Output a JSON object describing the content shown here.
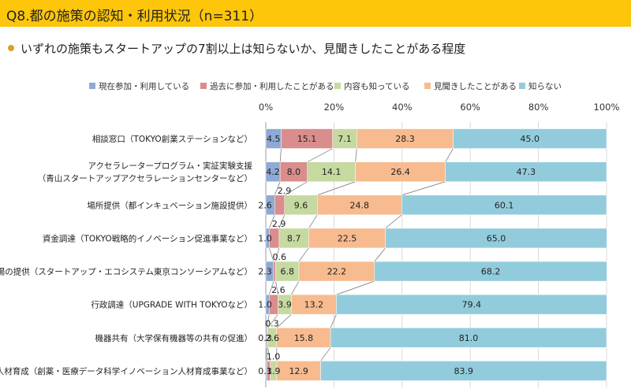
{
  "header": {
    "title": "Q8.都の施策の認知・利用状況（n=311）",
    "subtitle": "いずれの施策もスタートアップの7割以上は知らないか、見聞きしたことがある程度"
  },
  "colors": {
    "title_bar": "#fdc60a",
    "bullet": "#e0a020",
    "series": [
      "#8fa9d4",
      "#d98d8d",
      "#c5d9a0",
      "#f7bb8f",
      "#92ccdc"
    ],
    "grid": "#d9d9d9",
    "connector": "#808080"
  },
  "chart_data": {
    "type": "bar",
    "orientation": "horizontal",
    "stacked": true,
    "xlim": [
      0,
      100
    ],
    "x_ticks": [
      "0%",
      "20%",
      "40%",
      "60%",
      "80%",
      "100%"
    ],
    "legend_position": "top",
    "categories": [
      "相談窓口（TOKYO創業ステーションなど）",
      "アクセラレータープログラム・実証実験支援\n（青山スタートアップアクセラレーションセンターなど）",
      "場所提供（都インキュベーション施設提供）",
      "資金調達（TOKYO戦略的イノベーション促進事業など）",
      "場の提供（スタートアップ・エコシステム東京コンソーシアムなど）",
      "行政調達（UPGRADE WITH TOKYOなど）",
      "機器共有（大学保有機器等の共有の促進）",
      "人材育成（創薬・医療データ科学イノベーション人材育成事業など）"
    ],
    "series": [
      {
        "name": "現在参加・利用している",
        "values": [
          4.5,
          4.2,
          2.6,
          1.0,
          2.3,
          1.0,
          0.3,
          0.3
        ]
      },
      {
        "name": "過去に参加・利用したことがある",
        "values": [
          15.1,
          8.0,
          2.9,
          2.9,
          0.6,
          2.6,
          0.3,
          1.0
        ]
      },
      {
        "name": "内容も知っている",
        "values": [
          7.1,
          14.1,
          9.6,
          8.7,
          6.8,
          3.9,
          2.6,
          1.9
        ]
      },
      {
        "name": "見聞きしたことがある",
        "values": [
          28.3,
          26.4,
          24.8,
          22.5,
          22.2,
          13.2,
          15.8,
          12.9
        ]
      },
      {
        "name": "知らない",
        "values": [
          45.0,
          47.3,
          60.1,
          65.0,
          68.2,
          79.4,
          81.0,
          83.9
        ]
      }
    ],
    "value_labels": [
      [
        "4.5",
        "15.1",
        "7.1",
        "28.3",
        "45.0"
      ],
      [
        "4.2",
        "8.0",
        "14.1",
        "26.4",
        "47.3"
      ],
      [
        "2.6",
        "2.9",
        "9.6",
        "24.8",
        "60.1"
      ],
      [
        "1.0",
        "2.9",
        "8.7",
        "22.5",
        "65.0"
      ],
      [
        "2.3",
        "0.6",
        "6.8",
        "22.2",
        "68.2"
      ],
      [
        "1.0",
        "2.6",
        "3.9",
        "13.2",
        "79.4"
      ],
      [
        "0.3",
        "0.3",
        "2.6",
        "15.8",
        "81.0"
      ],
      [
        "0.3",
        "1.0",
        "1.9",
        "12.9",
        "83.9"
      ]
    ]
  }
}
